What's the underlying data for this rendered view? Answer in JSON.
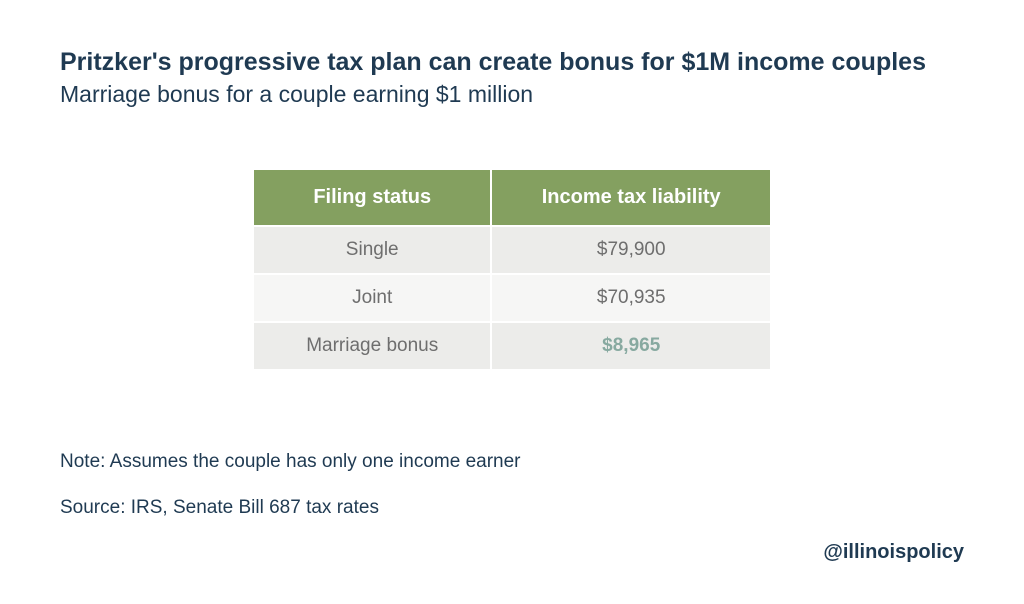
{
  "title": {
    "text": "Pritzker's progressive tax plan can create bonus for $1M income couples",
    "color": "#1f3a52",
    "fontsize": 25,
    "fontweight": 700
  },
  "subtitle": {
    "text": "Marriage bonus for a couple earning $1 million",
    "color": "#1f3a52",
    "fontsize": 23,
    "fontweight": 400
  },
  "table": {
    "type": "table",
    "header_bg": "#84a060",
    "header_color": "#ffffff",
    "header_fontsize": 20,
    "row_bg_odd": "#ececea",
    "row_bg_even": "#f6f6f5",
    "cell_color": "#6e6e6e",
    "highlight_color": "#87a9a0",
    "columns": [
      "Filing status",
      "Income tax liability"
    ],
    "col_widths": [
      "46%",
      "54%"
    ],
    "rows": [
      {
        "label": "Single",
        "value": "$79,900",
        "bg": "#ececea",
        "value_color": "#6e6e6e",
        "value_weight": 400
      },
      {
        "label": "Joint",
        "value": "$70,935",
        "bg": "#f6f6f5",
        "value_color": "#6e6e6e",
        "value_weight": 400
      },
      {
        "label": "Marriage bonus",
        "value": "$8,965",
        "bg": "#ececea",
        "value_color": "#87a9a0",
        "value_weight": 700
      }
    ]
  },
  "note": {
    "text": "Note: Assumes the couple has only one income earner",
    "color": "#1f3a52",
    "fontsize": 19
  },
  "source": {
    "text": "Source: IRS, Senate Bill 687 tax rates",
    "color": "#1f3a52",
    "fontsize": 19
  },
  "handle": {
    "text": "@illinoispolicy",
    "color": "#1f3a52",
    "fontsize": 20,
    "fontweight": 700
  },
  "background_color": "#ffffff"
}
